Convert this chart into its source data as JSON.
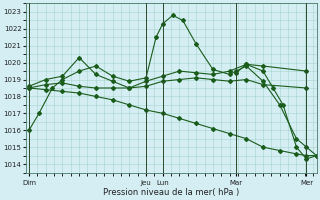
{
  "bg_color": "#d4eef4",
  "grid_color": "#a8d4cc",
  "line_color": "#1a5c1a",
  "xlabel": "Pression niveau de la mer( hPa )",
  "ylim": [
    1013.5,
    1023.5
  ],
  "yticks": [
    1014,
    1015,
    1016,
    1017,
    1018,
    1019,
    1020,
    1021,
    1022,
    1023
  ],
  "xlim": [
    -0.1,
    8.6
  ],
  "day_labels": [
    "Dim",
    "Jeu",
    "Lun",
    "Mar",
    "Mer"
  ],
  "day_positions": [
    0.0,
    3.5,
    4.0,
    6.2,
    8.3
  ],
  "vline_positions": [
    0.0,
    3.5,
    4.0,
    6.2,
    8.3
  ],
  "series": [
    {
      "x": [
        0.0,
        0.3,
        0.7,
        1.0,
        1.5,
        2.0,
        2.5,
        3.0,
        3.5,
        3.8,
        4.0,
        4.3,
        4.6,
        5.0,
        5.5,
        6.0,
        6.2,
        6.5,
        7.0,
        7.5,
        8.0,
        8.3,
        8.6
      ],
      "y": [
        1016.0,
        1017.0,
        1018.5,
        1019.0,
        1019.5,
        1019.8,
        1019.2,
        1018.9,
        1019.1,
        1021.5,
        1022.3,
        1022.8,
        1022.5,
        1021.1,
        1019.6,
        1019.3,
        1019.5,
        1019.8,
        1018.9,
        1017.5,
        1015.5,
        1015.0,
        1014.5
      ]
    },
    {
      "x": [
        0.0,
        0.5,
        1.0,
        1.5,
        2.0,
        2.5,
        3.0,
        3.5,
        4.0,
        4.5,
        5.0,
        5.5,
        6.0,
        6.5,
        7.0,
        8.3
      ],
      "y": [
        1018.6,
        1019.0,
        1019.2,
        1020.3,
        1019.3,
        1018.9,
        1018.5,
        1018.9,
        1019.2,
        1019.5,
        1019.4,
        1019.3,
        1019.5,
        1019.9,
        1019.8,
        1019.5
      ]
    },
    {
      "x": [
        0.0,
        0.5,
        1.0,
        1.5,
        2.0,
        2.5,
        3.0,
        3.5,
        4.0,
        4.5,
        5.0,
        5.5,
        6.0,
        6.5,
        7.0,
        8.3
      ],
      "y": [
        1018.5,
        1018.7,
        1018.8,
        1018.6,
        1018.5,
        1018.5,
        1018.5,
        1018.6,
        1018.9,
        1019.0,
        1019.1,
        1019.0,
        1018.9,
        1019.0,
        1018.7,
        1018.5
      ]
    },
    {
      "x": [
        0.0,
        0.5,
        1.0,
        1.5,
        2.0,
        2.5,
        3.0,
        3.5,
        4.0,
        4.5,
        5.0,
        5.5,
        6.0,
        6.5,
        7.0,
        7.5,
        8.0,
        8.3,
        8.6
      ],
      "y": [
        1018.5,
        1018.4,
        1018.3,
        1018.2,
        1018.0,
        1017.8,
        1017.5,
        1017.2,
        1017.0,
        1016.7,
        1016.4,
        1016.1,
        1015.8,
        1015.5,
        1015.0,
        1014.8,
        1014.6,
        1014.5,
        1014.5
      ]
    },
    {
      "x": [
        6.2,
        6.5,
        7.0,
        7.3,
        7.6,
        8.0,
        8.3,
        8.6
      ],
      "y": [
        1019.4,
        1019.9,
        1019.5,
        1018.5,
        1017.5,
        1015.0,
        1014.3,
        1014.5
      ]
    }
  ]
}
